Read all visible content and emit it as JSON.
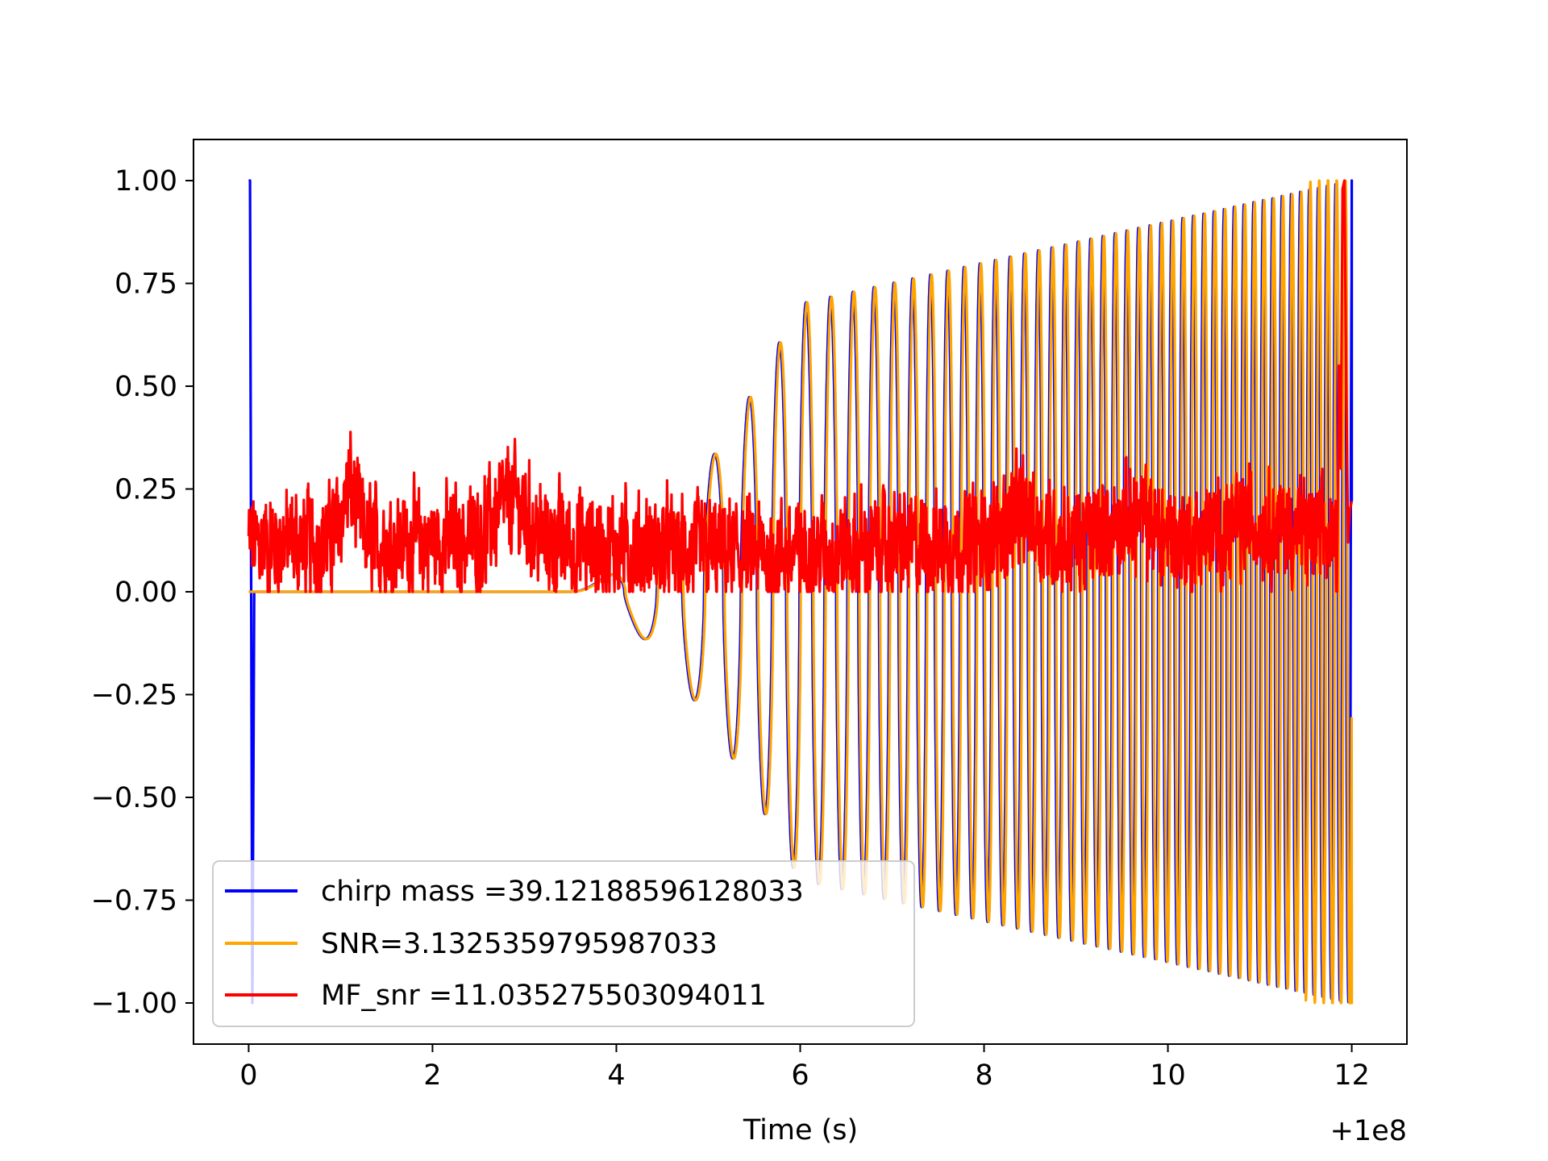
{
  "chart_data": {
    "type": "line",
    "title": "",
    "xlabel": "Time (s)",
    "ylabel": "",
    "x_offset_label": "+1e8",
    "xlim": [
      -0.6,
      12.6
    ],
    "ylim": [
      -1.1,
      1.1
    ],
    "x_ticks": [
      0,
      2,
      4,
      6,
      8,
      10,
      12
    ],
    "x_tick_labels": [
      "0",
      "2",
      "4",
      "6",
      "8",
      "10",
      "12"
    ],
    "y_ticks": [
      1.0,
      0.75,
      0.5,
      0.25,
      0.0,
      -0.25,
      -0.5,
      -0.75,
      -1.0
    ],
    "y_tick_labels": [
      "1.00",
      "0.75",
      "0.50",
      "0.25",
      "0.00",
      "−0.25",
      "−0.50",
      "−0.75",
      "−1.00"
    ],
    "grid": false,
    "legend_position": "lower-left",
    "series": [
      {
        "name": "chirp mass =39.12188596128033",
        "color": "#0000ff",
        "description_x": "0 to 12 (s, offset +1e8)",
        "shape": "spike from 1.00 to -1.00 at x=0, then zero until about x=3.5, then an oscillation whose amplitude grows to about 0.70 at x=6 and to 1.00 at x=12",
        "keypoints": [
          {
            "x": 0.0,
            "y": 1.0
          },
          {
            "x": 0.02,
            "y": 1.0
          },
          {
            "x": 0.04,
            "y": -1.0
          },
          {
            "x": 3.5,
            "y": 0.0
          },
          {
            "x": 6.0,
            "y": 0.7
          },
          {
            "x": 12.0,
            "y": 1.0
          }
        ]
      },
      {
        "name": "SNR=3.1325359795987033",
        "color": "#ffa500",
        "shape": "flat at 0.00 from x=0 to about x=3.5, then an oscillation in phase with the chirp, growing to full amplitude near x=12",
        "keypoints": [
          {
            "x": 0.0,
            "y": 0.0
          },
          {
            "x": 3.5,
            "y": 0.0
          },
          {
            "x": 6.0,
            "y": 0.7
          },
          {
            "x": 12.0,
            "y": 1.0
          }
        ]
      },
      {
        "name": "MF_snr =11.035275503094011",
        "color": "#ff0000",
        "shape": "noisy trace between about 0.00 and 0.40, peaks near x=1.1 (0.40) and x=11.9 (1.00)",
        "keypoints": [
          {
            "x": 0.0,
            "y": 0.25
          },
          {
            "x": 1.1,
            "y": 0.4
          },
          {
            "x": 2.85,
            "y": 0.34
          },
          {
            "x": 8.4,
            "y": 0.35
          },
          {
            "x": 11.9,
            "y": 1.0
          },
          {
            "x": 12.0,
            "y": 0.22
          }
        ]
      }
    ]
  }
}
